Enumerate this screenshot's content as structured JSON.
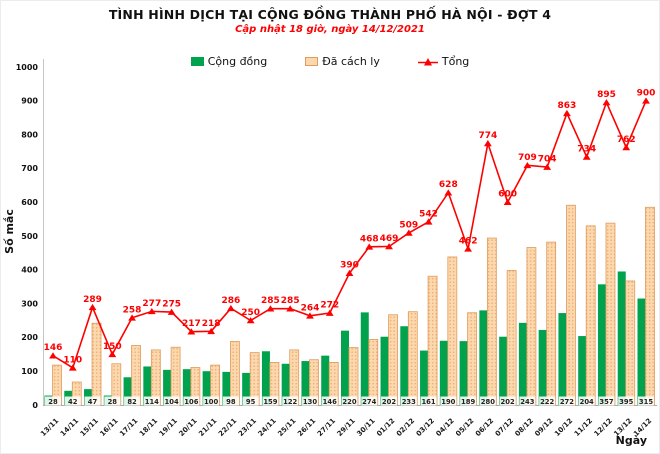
{
  "header": {
    "title": "TÌNH HÌNH DỊCH TẠI CỘNG ĐỒNG THÀNH PHỐ HÀ NỘI - ĐỢT 4",
    "subtitle": "Cập nhật 18 giờ, ngày 14/12/2021"
  },
  "legend": {
    "items": [
      {
        "label": "Cộng đồng",
        "type": "bar",
        "color": "#00a24d"
      },
      {
        "label": "Đã cách ly",
        "type": "bar",
        "color": "#fcd8ae"
      },
      {
        "label": "Tổng",
        "type": "line",
        "color": "#fe0000"
      }
    ]
  },
  "chart_data": {
    "type": "bar",
    "subtype": "clustered bars + line overlay",
    "title": "TÌNH HÌNH DỊCH TẠI CỘNG ĐỒNG THÀNH PHỐ HÀ NỘI - ĐỢT 4",
    "subtitle": "Cập nhật 18 giờ, ngày 14/12/2021",
    "xlabel": "Ngày",
    "ylabel": "Số mắc",
    "ylim": [
      0,
      1000
    ],
    "ytick_step": 100,
    "grid": false,
    "legend_position": "top",
    "categories": [
      "13/11",
      "14/11",
      "15/11",
      "16/11",
      "17/11",
      "18/11",
      "19/11",
      "20/11",
      "21/11",
      "22/11",
      "23/11",
      "24/11",
      "25/11",
      "26/11",
      "27/11",
      "29/11",
      "30/11",
      "01/12",
      "02/12",
      "03/12",
      "04/12",
      "05/12",
      "06/12",
      "07/12",
      "08/12",
      "09/12",
      "10/12",
      "11/12",
      "12/12",
      "13/12",
      "14/12"
    ],
    "series": [
      {
        "name": "Cộng đồng",
        "chart": "bar",
        "color": "#00a24d",
        "data_labels": true,
        "values": [
          28,
          42,
          47,
          28,
          82,
          114,
          104,
          106,
          100,
          98,
          95,
          159,
          122,
          130,
          146,
          220,
          274,
          202,
          233,
          161,
          190,
          189,
          280,
          202,
          243,
          222,
          272,
          204,
          357,
          395,
          315
        ]
      },
      {
        "name": "Đã cách ly",
        "chart": "bar",
        "color": "#fcd8ae",
        "data_labels": false,
        "values": [
          118,
          68,
          242,
          122,
          176,
          163,
          171,
          111,
          118,
          188,
          155,
          126,
          163,
          134,
          126,
          170,
          194,
          267,
          276,
          381,
          438,
          273,
          494,
          398,
          466,
          482,
          591,
          530,
          538,
          367,
          585
        ]
      },
      {
        "name": "Tổng",
        "chart": "line",
        "color": "#fe0000",
        "marker": "triangle",
        "data_labels": true,
        "values": [
          146,
          110,
          289,
          150,
          258,
          277,
          275,
          217,
          218,
          286,
          250,
          285,
          285,
          264,
          272,
          390,
          468,
          469,
          509,
          542,
          628,
          462,
          774,
          600,
          709,
          704,
          863,
          734,
          895,
          762,
          900
        ]
      }
    ]
  }
}
